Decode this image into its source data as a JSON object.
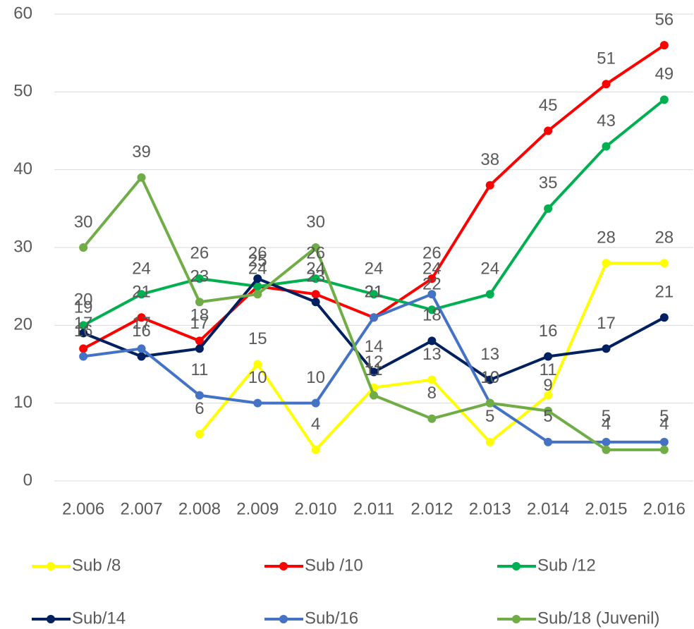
{
  "chart_data": {
    "type": "line",
    "categories": [
      "2.006",
      "2.007",
      "2.008",
      "2.009",
      "2.010",
      "2.011",
      "2.012",
      "2.013",
      "2.014",
      "2.015",
      "2.016"
    ],
    "series": [
      {
        "name": "Sub /8",
        "color": "#FFFF00",
        "values": [
          null,
          null,
          6,
          15,
          4,
          12,
          13,
          5,
          11,
          28,
          28
        ]
      },
      {
        "name": "Sub /10",
        "color": "#FF0000",
        "values": [
          17,
          21,
          18,
          25,
          24,
          21,
          26,
          38,
          45,
          51,
          56
        ]
      },
      {
        "name": "Sub /12",
        "color": "#00B050",
        "values": [
          20,
          24,
          26,
          25,
          26,
          24,
          22,
          24,
          35,
          43,
          49
        ]
      },
      {
        "name": "Sub/14",
        "color": "#002060",
        "values": [
          19,
          16,
          17,
          26,
          23,
          14,
          18,
          13,
          16,
          17,
          21
        ]
      },
      {
        "name": "Sub/16",
        "color": "#4472C4",
        "values": [
          16,
          17,
          11,
          10,
          10,
          21,
          24,
          10,
          5,
          5,
          5
        ]
      },
      {
        "name": "Sub/18 (Juvenil)",
        "color": "#70AD47",
        "values": [
          30,
          39,
          23,
          24,
          30,
          11,
          8,
          10,
          9,
          4,
          4
        ]
      }
    ],
    "ylim": [
      0,
      60
    ],
    "yticks": [
      0,
      10,
      20,
      30,
      40,
      50,
      60
    ],
    "grid": true,
    "legend": "bottom"
  }
}
